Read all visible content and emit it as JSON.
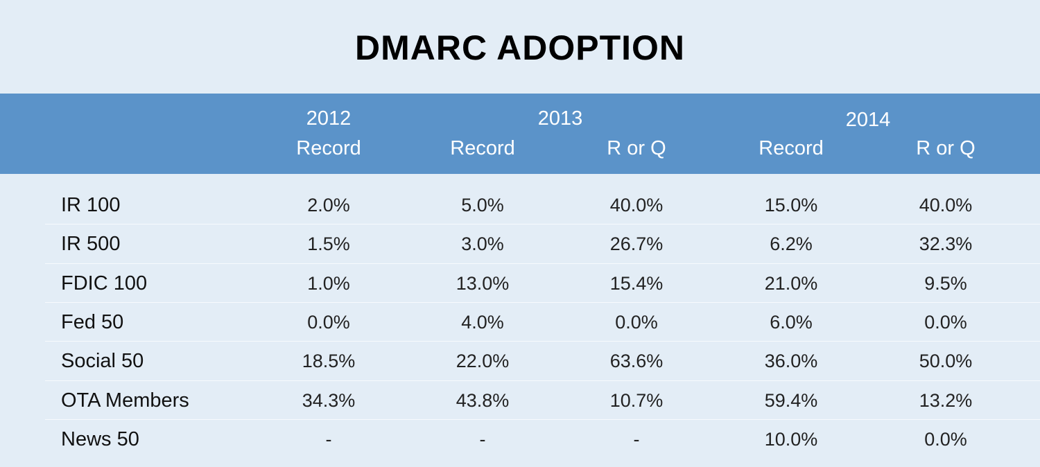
{
  "chart_data": {
    "type": "table",
    "title": "DMARC ADOPTION",
    "header": {
      "years": [
        "2012",
        "2013",
        "2014"
      ],
      "columns": [
        "Record",
        "Record",
        "R or Q",
        "Record",
        "R or Q"
      ]
    },
    "rows": [
      {
        "label": "IR 100",
        "values": [
          "2.0%",
          "5.0%",
          "40.0%",
          "15.0%",
          "40.0%"
        ]
      },
      {
        "label": "IR 500",
        "values": [
          "1.5%",
          "3.0%",
          "26.7%",
          "6.2%",
          "32.3%"
        ]
      },
      {
        "label": "FDIC 100",
        "values": [
          "1.0%",
          "13.0%",
          "15.4%",
          "21.0%",
          "9.5%"
        ]
      },
      {
        "label": "Fed 50",
        "values": [
          "0.0%",
          "4.0%",
          "0.0%",
          "6.0%",
          "0.0%"
        ]
      },
      {
        "label": "Social 50",
        "values": [
          "18.5%",
          "22.0%",
          "63.6%",
          "36.0%",
          "50.0%"
        ]
      },
      {
        "label": "OTA Members",
        "values": [
          "34.3%",
          "43.8%",
          "10.7%",
          "59.4%",
          "13.2%"
        ]
      },
      {
        "label": "News 50",
        "values": [
          "-",
          "-",
          "-",
          "10.0%",
          "0.0%"
        ]
      }
    ]
  },
  "colors": {
    "background": "#e3edf6",
    "header": "#5b93c9",
    "header_text": "#ffffff"
  }
}
